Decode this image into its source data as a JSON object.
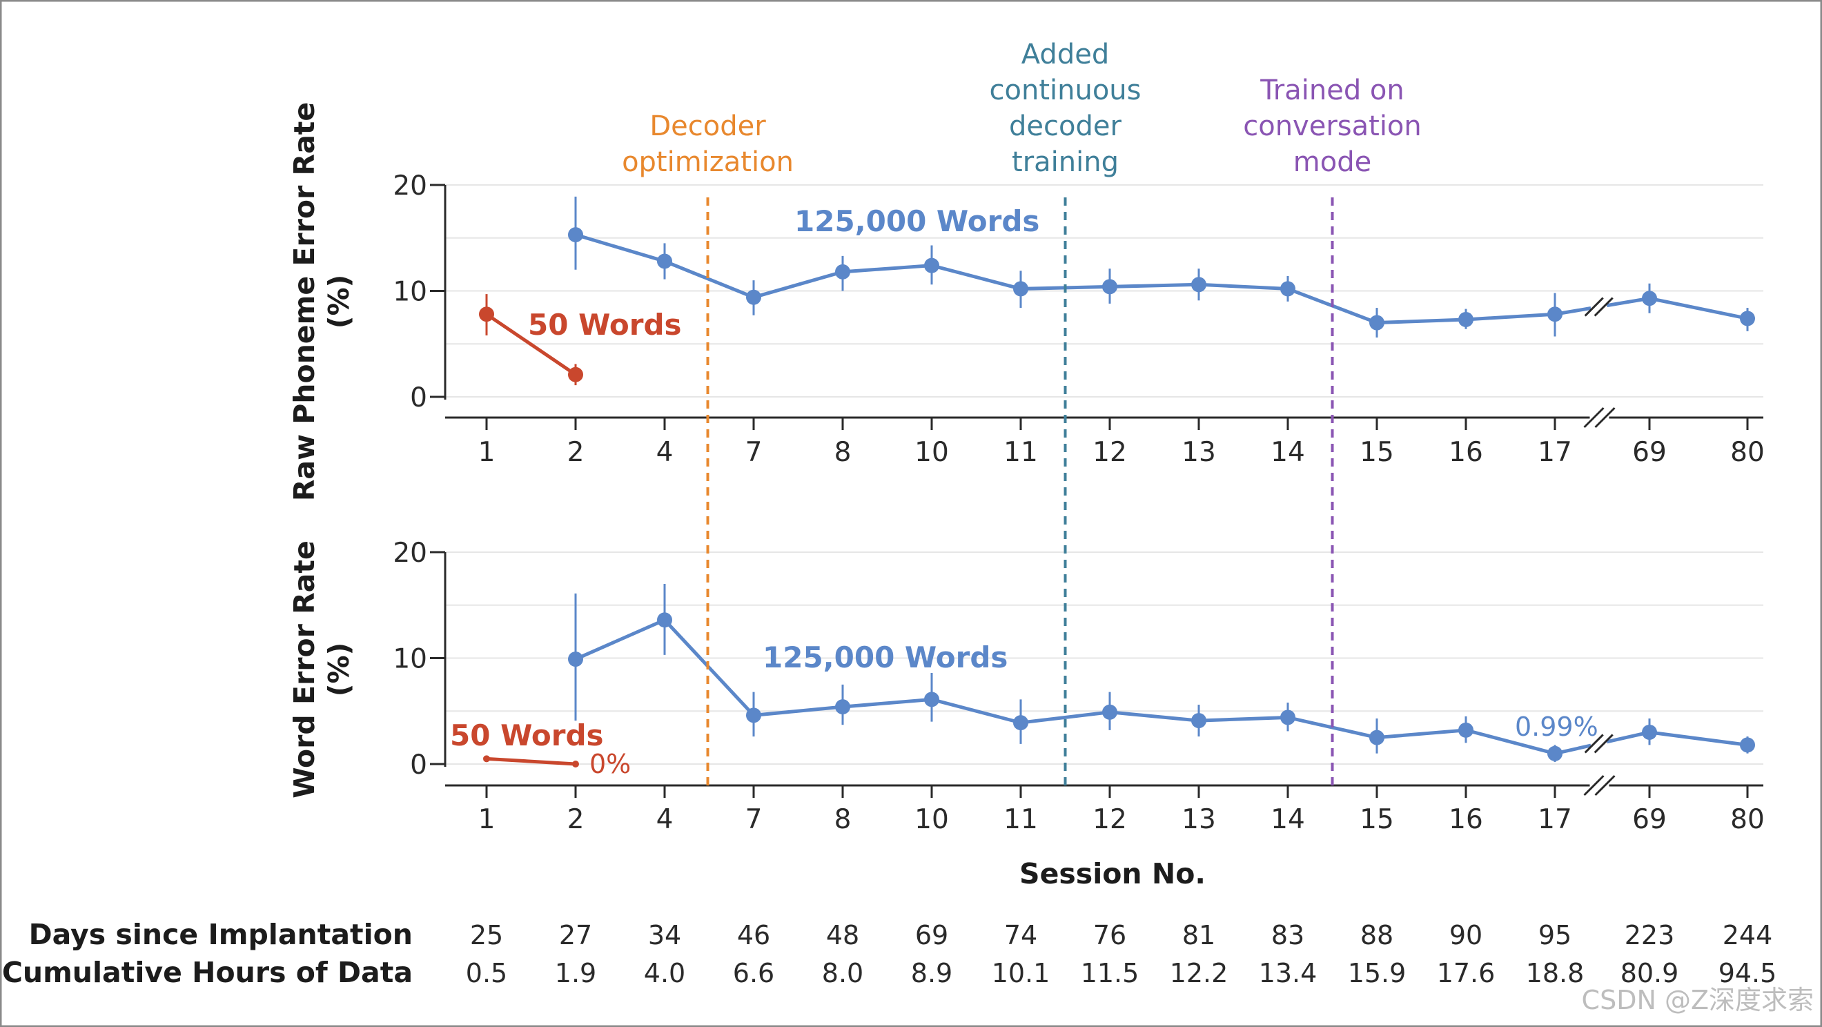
{
  "chart_data": [
    {
      "type": "line",
      "ylabel": "Raw Phoneme Error Rate (%)",
      "ylabel_lines": [
        "Raw Phoneme Error Rate",
        "(%)"
      ],
      "ylim": [
        0,
        20
      ],
      "yticks": [
        0,
        10,
        20
      ],
      "categories": [
        "1",
        "2",
        "4",
        "7",
        "8",
        "10",
        "11",
        "12",
        "13",
        "14",
        "15",
        "16",
        "17",
        "69",
        "80"
      ],
      "axis_break_after": "17",
      "grid": true,
      "series": [
        {
          "name": "50 Words",
          "color": "#c9472d",
          "x": [
            "1",
            "2"
          ],
          "values": [
            7.8,
            2.1
          ],
          "err_low": [
            5.8,
            1.1
          ],
          "err_high": [
            9.7,
            3.1
          ]
        },
        {
          "name": "125,000 Words",
          "color": "#5b87c9",
          "x": [
            "2",
            "4",
            "7",
            "8",
            "10",
            "11",
            "12",
            "13",
            "14",
            "15",
            "16",
            "17",
            "69",
            "80"
          ],
          "values": [
            15.3,
            12.8,
            9.4,
            11.8,
            12.4,
            10.2,
            10.4,
            10.6,
            10.2,
            7.0,
            7.3,
            7.8,
            9.3,
            7.4
          ],
          "err_low": [
            12.0,
            11.1,
            7.7,
            10.0,
            10.6,
            8.4,
            8.8,
            9.1,
            9.0,
            5.6,
            6.4,
            5.7,
            7.9,
            6.2
          ],
          "err_high": [
            18.9,
            14.5,
            11.0,
            13.3,
            14.3,
            11.9,
            12.1,
            12.1,
            11.4,
            8.4,
            8.3,
            9.8,
            10.7,
            8.4
          ]
        }
      ],
      "series_labels": [
        "50 Words",
        "125,000 Words"
      ]
    },
    {
      "type": "line",
      "ylabel": "Word Error Rate (%)",
      "ylabel_lines": [
        "Word Error Rate",
        "(%)"
      ],
      "ylim": [
        0,
        20
      ],
      "yticks": [
        0,
        10,
        20
      ],
      "categories": [
        "1",
        "2",
        "4",
        "7",
        "8",
        "10",
        "11",
        "12",
        "13",
        "14",
        "15",
        "16",
        "17",
        "69",
        "80"
      ],
      "axis_break_after": "17",
      "grid": true,
      "series": [
        {
          "name": "50 Words",
          "color": "#c9472d",
          "x": [
            "1",
            "2"
          ],
          "values": [
            0.5,
            0.0
          ],
          "err_low": [
            0.3,
            0.0
          ],
          "err_high": [
            0.7,
            0.0
          ]
        },
        {
          "name": "125,000 Words",
          "color": "#5b87c9",
          "x": [
            "2",
            "4",
            "7",
            "8",
            "10",
            "11",
            "12",
            "13",
            "14",
            "15",
            "16",
            "17",
            "69",
            "80"
          ],
          "values": [
            9.9,
            13.6,
            4.6,
            5.4,
            6.1,
            3.9,
            4.9,
            4.1,
            4.4,
            2.5,
            3.2,
            0.99,
            3.0,
            1.8
          ],
          "err_low": [
            4.1,
            10.3,
            2.6,
            3.7,
            4.0,
            1.9,
            3.2,
            2.6,
            3.1,
            1.0,
            2.0,
            0.2,
            1.8,
            1.0
          ],
          "err_high": [
            16.1,
            17.0,
            6.8,
            7.5,
            8.6,
            6.1,
            6.8,
            5.6,
            5.8,
            4.3,
            4.5,
            1.8,
            4.3,
            2.6
          ]
        }
      ],
      "series_labels": [
        "50 Words",
        "125,000 Words"
      ],
      "point_labels": [
        "0%",
        "0.99%"
      ]
    }
  ],
  "events": [
    {
      "text": "Decoder optimization",
      "lines": [
        "Decoder",
        "optimization"
      ],
      "between": [
        "4",
        "7"
      ],
      "color": "#e8882e"
    },
    {
      "text": "Added continuous decoder training",
      "lines": [
        "Added",
        "continuous",
        "decoder",
        "training"
      ],
      "between": [
        "11",
        "12"
      ],
      "color": "#3f7f99"
    },
    {
      "text": "Trained on conversation mode",
      "lines": [
        "Trained on",
        "conversation",
        "mode"
      ],
      "between": [
        "14",
        "15"
      ],
      "color": "#8a55b3"
    }
  ],
  "xlabel": "Session No.",
  "table": {
    "rows": [
      {
        "label": "Days since Implantation",
        "values": [
          "25",
          "27",
          "34",
          "46",
          "48",
          "69",
          "74",
          "76",
          "81",
          "83",
          "88",
          "90",
          "95",
          "223",
          "244"
        ]
      },
      {
        "label": "Cumulative Hours of Data",
        "values": [
          "0.5",
          "1.9",
          "4.0",
          "6.6",
          "8.0",
          "8.9",
          "10.1",
          "11.5",
          "12.2",
          "13.4",
          "15.9",
          "17.6",
          "18.8",
          "80.9",
          "94.5"
        ]
      }
    ]
  },
  "watermark": "CSDN @Z深度求索"
}
